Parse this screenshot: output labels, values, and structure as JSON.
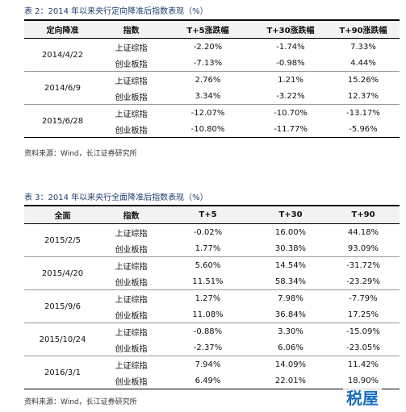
{
  "tables": [
    {
      "title": "表 2：2014 年以来央行定向降准后指数表现（%）",
      "headers": [
        "定向降准",
        "指数",
        "T+5涨跌幅",
        "T+30涨跌幅",
        "T+90涨跌幅"
      ],
      "groups": [
        {
          "date": "2014/4/22",
          "rows": [
            [
              "上证综指",
              "-2.20%",
              "-1.74%",
              "7.33%"
            ],
            [
              "创业板指",
              "-7.13%",
              "-0.98%",
              "4.44%"
            ]
          ]
        },
        {
          "date": "2014/6/9",
          "rows": [
            [
              "上证综指",
              "2.76%",
              "1.21%",
              "15.26%"
            ],
            [
              "创业板指",
              "3.34%",
              "-3.22%",
              "12.37%"
            ]
          ]
        },
        {
          "date": "2015/6/28",
          "rows": [
            [
              "上证综指",
              "-12.07%",
              "-10.70%",
              "-13.17%"
            ],
            [
              "创业板指",
              "-10.80%",
              "-11.77%",
              "-5.96%"
            ]
          ]
        }
      ],
      "source": "资料来源：Wind，长江证券研究所"
    },
    {
      "title": "表 3：2014 年以来央行全面降准后指数表现（%）",
      "headers": [
        "全面",
        "指数",
        "T+5",
        "T+30",
        "T+90"
      ],
      "groups": [
        {
          "date": "2015/2/5",
          "rows": [
            [
              "上证综指",
              "-0.02%",
              "16.00%",
              "44.18%"
            ],
            [
              "创业板指",
              "1.77%",
              "30.38%",
              "93.09%"
            ]
          ]
        },
        {
          "date": "2015/4/20",
          "rows": [
            [
              "上证综指",
              "5.60%",
              "14.54%",
              "-31.72%"
            ],
            [
              "创业板指",
              "11.51%",
              "58.34%",
              "-23.29%"
            ]
          ]
        },
        {
          "date": "2015/9/6",
          "rows": [
            [
              "上证综指",
              "1.27%",
              "7.98%",
              "-7.79%"
            ],
            [
              "创业板指",
              "11.08%",
              "36.84%",
              "17.25%"
            ]
          ]
        },
        {
          "date": "2015/10/24",
          "rows": [
            [
              "上证综指",
              "-0.88%",
              "3.30%",
              "-15.09%"
            ],
            [
              "创业板指",
              "-2.37%",
              "6.06%",
              "-23.05%"
            ]
          ]
        },
        {
          "date": "2016/3/1",
          "rows": [
            [
              "上证综指",
              "7.94%",
              "14.09%",
              "11.42%"
            ],
            [
              "创业板指",
              "6.49%",
              "22.01%",
              "18.90%"
            ]
          ]
        }
      ],
      "source": "资料来源：Wind，长江证券研究所"
    }
  ],
  "watermark": "税屋"
}
